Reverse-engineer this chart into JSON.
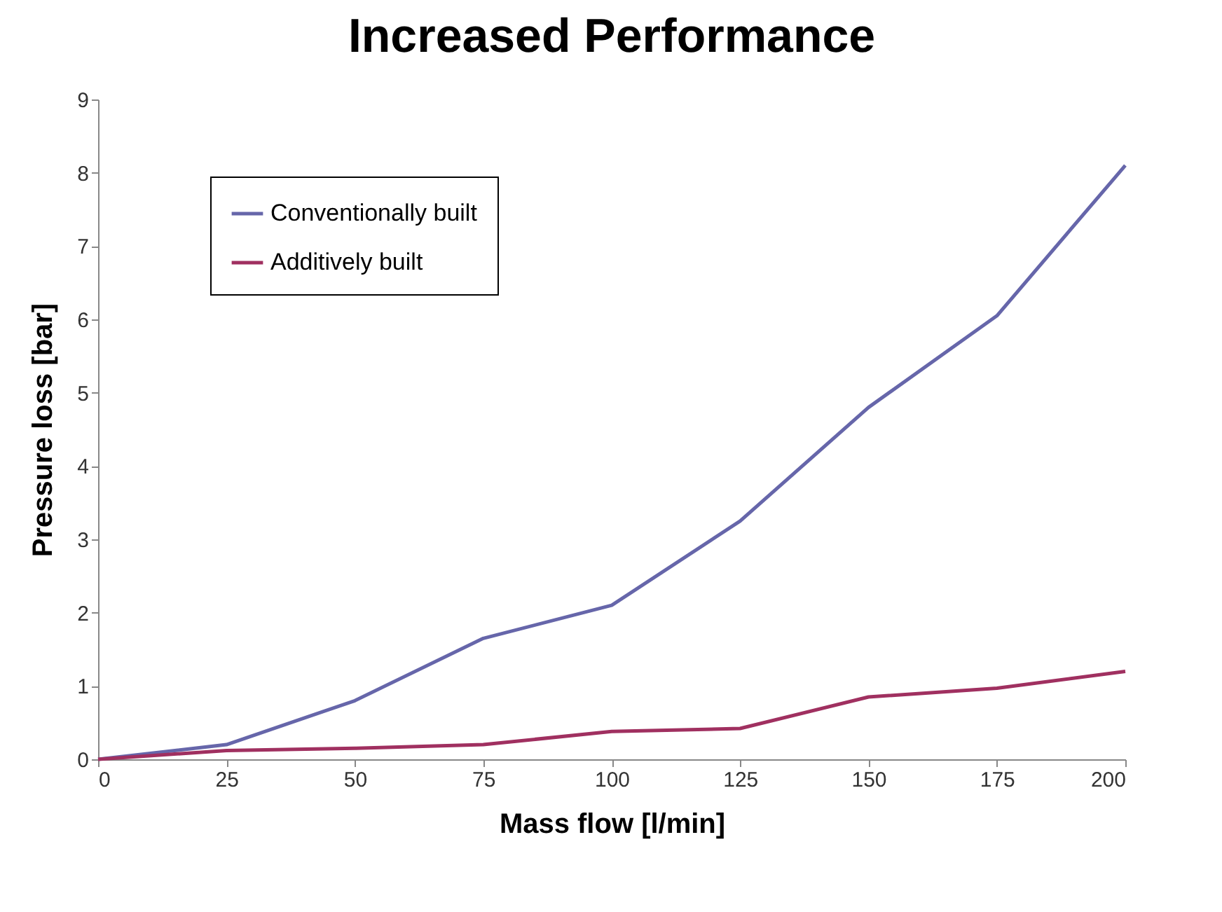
{
  "chart_data": {
    "type": "line",
    "title": "Increased Performance",
    "xlabel": "Mass flow [l/min]",
    "ylabel": "Pressure loss [bar]",
    "x": [
      0,
      25,
      50,
      75,
      100,
      125,
      150,
      175,
      200
    ],
    "series": [
      {
        "name": "Conventionally built",
        "color": "#6666aa",
        "values": [
          0,
          0.2,
          0.8,
          1.65,
          2.1,
          3.25,
          4.8,
          6.05,
          8.1
        ]
      },
      {
        "name": "Additively built",
        "color": "#a03060",
        "values": [
          0,
          0.12,
          0.15,
          0.2,
          0.38,
          0.42,
          0.85,
          0.97,
          1.2
        ]
      }
    ],
    "xlim": [
      0,
      200
    ],
    "xticks": [
      0,
      25,
      50,
      75,
      100,
      125,
      150,
      175,
      200
    ],
    "ylim": [
      0,
      9
    ],
    "yticks": [
      0,
      1,
      2,
      3,
      4,
      5,
      6,
      7,
      8,
      9
    ],
    "grid": false,
    "legend": "top left",
    "marker": "none",
    "line_style": "solid"
  }
}
